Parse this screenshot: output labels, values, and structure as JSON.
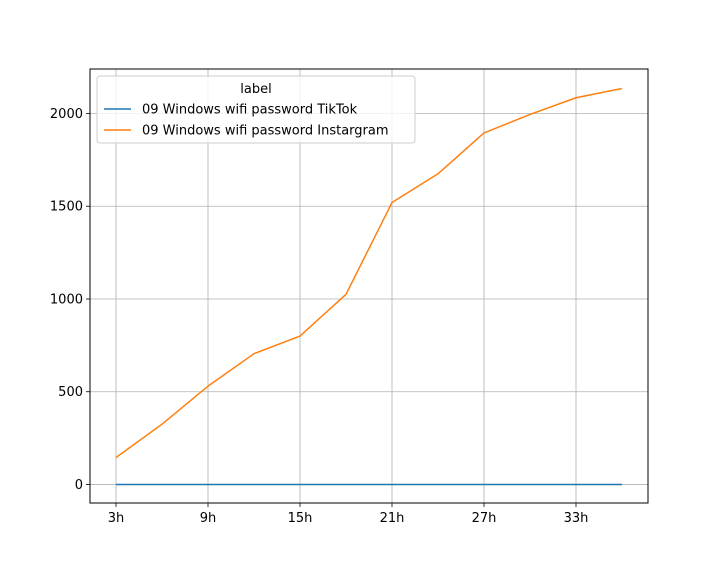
{
  "chart_data": {
    "type": "line",
    "title": "",
    "xlabel": "",
    "ylabel": "",
    "x": [
      "3h",
      "6h",
      "9h",
      "12h",
      "15h",
      "18h",
      "21h",
      "24h",
      "27h",
      "30h",
      "33h",
      "36h"
    ],
    "x_ticks": [
      "3h",
      "9h",
      "15h",
      "21h",
      "27h",
      "33h"
    ],
    "y_ticks": [
      0,
      500,
      1000,
      1500,
      2000
    ],
    "ylim": [
      -100,
      2240
    ],
    "grid": true,
    "legend": {
      "title": "label",
      "placement": "top-left"
    },
    "series": [
      {
        "name": "09 Windows wifi password TikTok",
        "color": "#1f77b4",
        "values": [
          0,
          0,
          0,
          0,
          0,
          0,
          0,
          0,
          0,
          0,
          0,
          0
        ]
      },
      {
        "name": "09 Windows wifi password Instargram",
        "color": "#ff7f0e",
        "values": [
          145,
          325,
          530,
          705,
          800,
          1025,
          1520,
          1675,
          1895,
          1995,
          2085,
          2135
        ]
      }
    ]
  }
}
